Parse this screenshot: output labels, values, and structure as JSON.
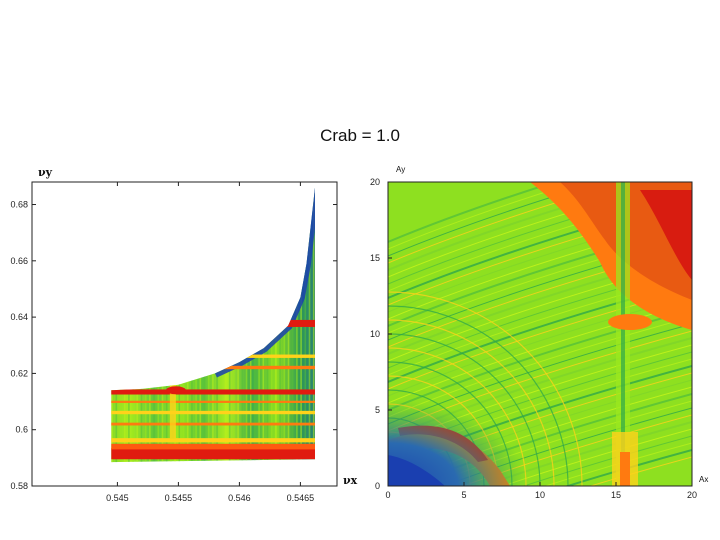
{
  "slide": {
    "title": "Crab = 1.0"
  },
  "chart_data": [
    {
      "type": "scatter",
      "title": "",
      "xlabel": "νx",
      "ylabel": "νy",
      "xlim": [
        0.5443,
        0.5468
      ],
      "ylim": [
        0.58,
        0.688
      ],
      "xticks": [
        "0.545",
        "0.5455",
        "0.546",
        "0.5465"
      ],
      "xtick_values": [
        0.545,
        0.5455,
        0.546,
        0.5465
      ],
      "yticks": [
        "0.58",
        "0.6",
        "0.62",
        "0.64",
        "0.66",
        "0.68"
      ],
      "ytick_values": [
        0.58,
        0.6,
        0.62,
        0.64,
        0.66,
        0.68
      ],
      "colormap": [
        "#1a3fb0",
        "#2fa84a",
        "#9be81e",
        "#ffd21a",
        "#ff7a10",
        "#e01b10"
      ],
      "stable_region_upper_boundary": {
        "x": [
          0.54495,
          0.5452,
          0.5455,
          0.5458,
          0.546,
          0.5462,
          0.5464,
          0.5465,
          0.54655,
          0.54662
        ],
        "y": [
          0.614,
          0.6145,
          0.616,
          0.62,
          0.624,
          0.629,
          0.637,
          0.647,
          0.659,
          0.686
        ]
      },
      "stable_region_lower_boundary": {
        "x": [
          0.54495,
          0.5466
        ],
        "y": [
          0.5885,
          0.5895
        ]
      },
      "grid": false
    },
    {
      "type": "heatmap",
      "title": "",
      "xlabel": "Ax",
      "ylabel": "Ay",
      "xlim": [
        0,
        20
      ],
      "ylim": [
        0,
        20
      ],
      "xticks": [
        "0",
        "5",
        "10",
        "15",
        "20"
      ],
      "xtick_values": [
        0,
        5,
        10,
        15,
        20
      ],
      "yticks": [
        "0",
        "5",
        "10",
        "15",
        "20"
      ],
      "ytick_values": [
        0,
        5,
        10,
        15,
        20
      ],
      "colormap": [
        "#1a3fb0",
        "#2fa84a",
        "#9be81e",
        "#ffd21a",
        "#ff7a10",
        "#e01b10"
      ],
      "grid": false
    }
  ]
}
